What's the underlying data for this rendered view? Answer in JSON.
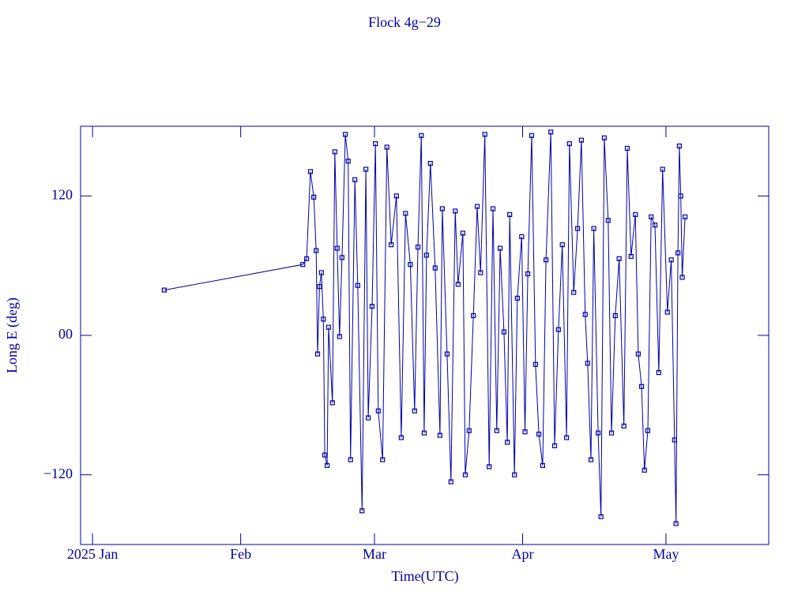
{
  "chart_data": {
    "type": "line",
    "title": "Flock 4g−29",
    "xlabel": "Time(UTC)",
    "ylabel": "Long E (deg)",
    "color": "#0000aa",
    "marker": "square",
    "x": [
      15.0,
      44.0,
      44.8,
      45.6,
      46.3,
      46.8,
      47.1,
      47.5,
      47.9,
      48.3,
      48.6,
      49.1,
      49.4,
      50.2,
      50.7,
      51.2,
      51.7,
      52.2,
      52.9,
      53.5,
      54.0,
      54.9,
      55.5,
      56.4,
      57.2,
      57.7,
      58.5,
      59.2,
      59.8,
      60.7,
      61.6,
      62.5,
      63.6,
      64.6,
      65.5,
      66.5,
      67.4,
      68.1,
      68.8,
      69.4,
      69.9,
      70.7,
      71.7,
      72.7,
      73.2,
      74.2,
      75.0,
      75.9,
      76.5,
      77.5,
      78.0,
      78.8,
      79.7,
      80.5,
      81.2,
      82.1,
      83.0,
      83.8,
      84.6,
      85.3,
      86.1,
      86.8,
      87.3,
      88.3,
      88.9,
      89.8,
      90.5,
      91.1,
      91.9,
      92.7,
      93.4,
      94.2,
      94.9,
      95.9,
      96.7,
      97.5,
      98.3,
      99.2,
      99.8,
      100.7,
      101.5,
      102.3,
      103.1,
      103.6,
      104.3,
      104.9,
      105.8,
      106.4,
      107.1,
      107.9,
      108.6,
      109.4,
      110.2,
      111.2,
      111.9,
      112.7,
      113.6,
      114.2,
      114.9,
      115.5,
      116.2,
      116.9,
      117.7,
      118.5,
      119.3,
      120.3,
      121.1,
      121.8,
      122.1,
      122.5,
      122.8,
      123.1,
      123.4,
      124.0
    ],
    "values": [
      39,
      61,
      66,
      141,
      119,
      73,
      -16,
      42,
      54,
      14,
      -103,
      -112,
      7,
      -58,
      158,
      75,
      -1,
      67,
      173,
      150,
      -107,
      134,
      43,
      -151,
      143,
      -71,
      25,
      165,
      -65,
      -107,
      162,
      78,
      120,
      -88,
      105,
      61,
      -65,
      76,
      172,
      -84,
      69,
      148,
      58,
      -86,
      109,
      -16,
      -126,
      107,
      44,
      88,
      -120,
      -82,
      17,
      111,
      54,
      173,
      -113,
      109,
      -82,
      75,
      3,
      -92,
      104,
      -120,
      32,
      85,
      -83,
      53,
      172,
      -25,
      -85,
      -112,
      65,
      175,
      -95,
      5,
      78,
      -88,
      165,
      37,
      92,
      168,
      18,
      -24,
      -107,
      92,
      -84,
      -156,
      170,
      99,
      -84,
      17,
      66,
      -78,
      161,
      68,
      104,
      -16,
      -44,
      -116,
      -82,
      102,
      95,
      -32,
      143,
      20,
      65,
      -90,
      -162,
      71,
      163,
      120,
      50,
      102
    ],
    "xlim": [
      -2.5,
      141.5
    ],
    "xticks": [
      {
        "value": 0,
        "label": "2025 Jan"
      },
      {
        "value": 31,
        "label": "Feb"
      },
      {
        "value": 59,
        "label": "Mar"
      },
      {
        "value": 90,
        "label": "Apr"
      },
      {
        "value": 120,
        "label": "May"
      }
    ],
    "ylim": [
      -180,
      180
    ],
    "yticks": [
      {
        "value": -120,
        "label": "−120"
      },
      {
        "value": 0,
        "label": "00"
      },
      120
    ]
  }
}
